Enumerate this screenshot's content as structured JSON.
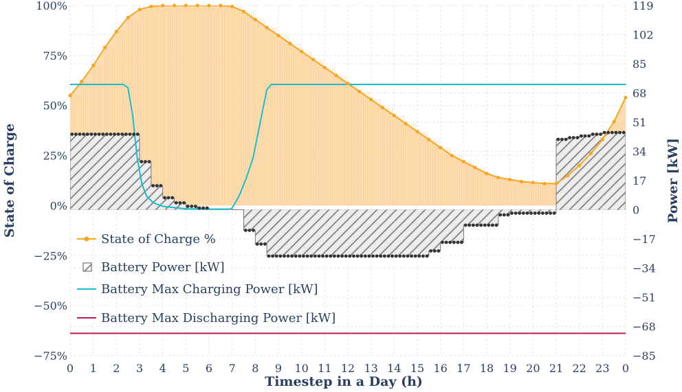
{
  "chart_data": {
    "type": "line",
    "title": "",
    "xlabel": "Timestep in a Day (h)",
    "ylabel_left": "State of Charge",
    "ylabel_right": "Power [kW]",
    "x_ticks": [
      "0",
      "1",
      "2",
      "3",
      "4",
      "5",
      "6",
      "7",
      "8",
      "9",
      "10",
      "11",
      "12",
      "13",
      "14",
      "15",
      "16",
      "17",
      "18",
      "19",
      "20",
      "21",
      "22",
      "23",
      "0"
    ],
    "xlim": [
      0,
      24
    ],
    "y_left": {
      "range": [
        -75,
        100
      ],
      "ticks": [
        100,
        75,
        50,
        25,
        0,
        -25,
        -50,
        -75
      ],
      "tick_labels": [
        "100%",
        "75%",
        "50%",
        "25%",
        "0%",
        "−25%",
        "−50%",
        "−75%"
      ]
    },
    "y_right": {
      "range": [
        -85,
        119
      ],
      "ticks": [
        119,
        102,
        85,
        68,
        51,
        34,
        17,
        0,
        -17,
        -34,
        -51,
        -68,
        -85
      ],
      "tick_labels": [
        "119",
        "102",
        "85",
        "68",
        "51",
        "34",
        "17",
        "0",
        "−17",
        "−34",
        "−51",
        "−68",
        "−85"
      ]
    },
    "grid": true,
    "legend_position": "bottom-left",
    "series": [
      {
        "name": "State of Charge %",
        "axis": "left",
        "color": "#f5a623",
        "x": [
          0,
          0.5,
          1,
          1.5,
          2,
          2.5,
          3,
          3.5,
          4,
          4.5,
          5,
          5.5,
          6,
          6.5,
          7,
          7.5,
          8,
          8.5,
          9,
          9.5,
          10,
          10.5,
          11,
          11.5,
          12,
          12.5,
          13,
          13.5,
          14,
          14.5,
          15,
          15.5,
          16,
          16.5,
          17,
          17.5,
          18,
          18.5,
          19,
          19.5,
          20,
          20.5,
          21,
          21.5,
          22,
          22.5,
          23,
          23.5,
          24
        ],
        "y": [
          55,
          62,
          70,
          79,
          87,
          94,
          98,
          99.5,
          100,
          100,
          100,
          100,
          100,
          100,
          99.5,
          97,
          93,
          89,
          85,
          81,
          77,
          73,
          69,
          65,
          61,
          57,
          53,
          49,
          45,
          41,
          37,
          33,
          29,
          25,
          22,
          19,
          16,
          14,
          13,
          12,
          11.5,
          11,
          11,
          15,
          20,
          26,
          33,
          42,
          54
        ]
      },
      {
        "name": "Battery Power [kW]",
        "axis": "right",
        "color": "#555555",
        "x": [
          0,
          0.5,
          1,
          1.5,
          2,
          2.5,
          3,
          3.5,
          4,
          4.5,
          5,
          5.5,
          6,
          6.5,
          7,
          7.5,
          8,
          8.5,
          9,
          9.5,
          10,
          10.5,
          11,
          11.5,
          12,
          12.5,
          13,
          13.5,
          14,
          14.5,
          15,
          15.5,
          16,
          16.5,
          17,
          17.5,
          18,
          18.5,
          19,
          19.5,
          20,
          20.5,
          21,
          21.5,
          22,
          22.5,
          23,
          23.5,
          24
        ],
        "y": [
          44,
          44,
          44,
          44,
          44,
          44,
          28,
          14,
          7,
          4,
          2,
          1,
          0.5,
          0.5,
          0,
          -12,
          -20,
          -27,
          -27,
          -27,
          -27,
          -27,
          -27,
          -27,
          -27,
          -27,
          -27,
          -27,
          -27,
          -27,
          -27,
          -24,
          -19,
          -19,
          -9,
          -9,
          -9,
          -3,
          -2,
          -2,
          -2,
          -2,
          41,
          42,
          43,
          44,
          45,
          45,
          45
        ]
      },
      {
        "name": "Battery Max Charging Power [kW]",
        "axis": "right",
        "color": "#17becf",
        "x": [
          0,
          2.3,
          2.5,
          2.7,
          2.9,
          3.1,
          3.3,
          3.6,
          4,
          5,
          6,
          6.9,
          7.0,
          7.3,
          7.6,
          7.9,
          8.2,
          8.5,
          8.7,
          9,
          12,
          18,
          24
        ],
        "y": [
          73,
          73,
          71,
          55,
          30,
          15,
          8,
          4,
          2,
          0.5,
          0.3,
          0.3,
          1,
          8,
          18,
          30,
          50,
          70,
          73,
          73,
          73,
          73,
          73
        ]
      },
      {
        "name": "Battery Max Discharging Power [kW]",
        "axis": "right",
        "color": "#c2185b",
        "x": [
          0,
          24
        ],
        "y": [
          -72,
          -72
        ]
      }
    ]
  }
}
